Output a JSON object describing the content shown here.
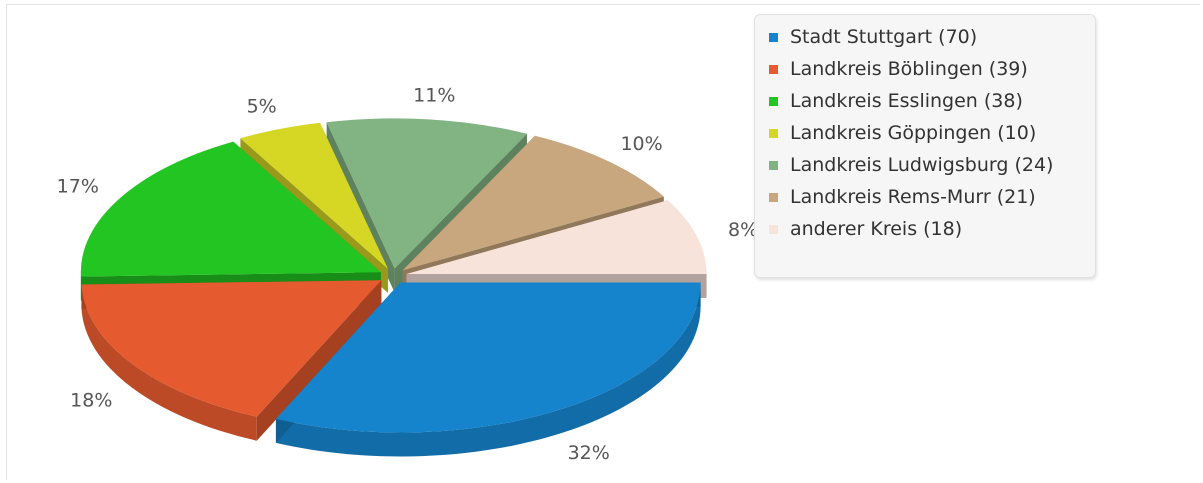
{
  "chart_data": {
    "type": "pie",
    "style": "3d-exploded",
    "legend_position": "right",
    "slices": [
      {
        "label": "Stadt Stuttgart (70)",
        "value": 70,
        "percent_label": "32%",
        "color": "#1584cc"
      },
      {
        "label": "Landkreis Böblingen (39)",
        "value": 39,
        "percent_label": "18%",
        "color": "#e55a2e"
      },
      {
        "label": "Landkreis Esslingen (38)",
        "value": 38,
        "percent_label": "17%",
        "color": "#22c522"
      },
      {
        "label": "Landkreis Göppingen (10)",
        "value": 10,
        "percent_label": "5%",
        "color": "#d6d624"
      },
      {
        "label": "Landkreis Ludwigsburg (24)",
        "value": 24,
        "percent_label": "11%",
        "color": "#82b382"
      },
      {
        "label": "Landkreis Rems-Murr (21)",
        "value": 21,
        "percent_label": "10%",
        "color": "#c8a67e"
      },
      {
        "label": "anderer Kreis (18)",
        "value": 18,
        "percent_label": "8%",
        "color": "#f8e3db"
      }
    ]
  }
}
